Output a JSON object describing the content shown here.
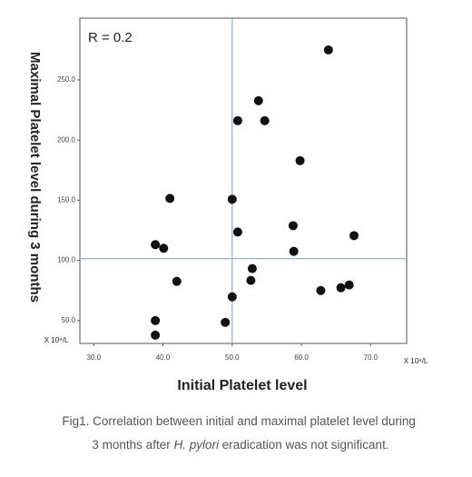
{
  "chart_data": {
    "type": "scatter",
    "annotation": "R = 0.2",
    "x_label": "Initial Platelet level",
    "y_label": "Maximal Platelet level during 3 months",
    "x_unit": "X 10⁹/L",
    "y_unit": "X 10⁹/L",
    "x": [
      63.9,
      53.8,
      50.8,
      54.7,
      59.8,
      41.0,
      50.0,
      58.8,
      50.8,
      67.6,
      38.9,
      40.1,
      58.9,
      52.9,
      52.7,
      42.0,
      62.8,
      65.7,
      66.9,
      50.0,
      38.9,
      49.0,
      38.9
    ],
    "values": [
      274.9,
      232.7,
      216.1,
      216.1,
      182.9,
      151.5,
      150.8,
      128.9,
      123.6,
      120.6,
      113.1,
      110.1,
      107.5,
      93.2,
      83.4,
      82.6,
      75.0,
      77.3,
      79.6,
      69.7,
      50.0,
      48.5,
      37.9
    ],
    "color": "#111111",
    "reference_x": 50,
    "reference_y": 101.5,
    "reference_color": "#9ab0c4",
    "xlim": [
      28,
      75.2
    ],
    "ylim": [
      31,
      301.3
    ],
    "xticks": [
      {
        "value": 30,
        "label": "30.0"
      },
      {
        "value": 40,
        "label": "40.0"
      },
      {
        "value": 50,
        "label": "50.0"
      },
      {
        "value": 60,
        "label": "60.0"
      },
      {
        "value": 70,
        "label": "70.0"
      }
    ],
    "yticks": [
      {
        "value": 50,
        "label": "50.0"
      },
      {
        "value": 100,
        "label": "100.0"
      },
      {
        "value": 150,
        "label": "150.0"
      },
      {
        "value": 200,
        "label": "200.0"
      },
      {
        "value": 250,
        "label": "250.0"
      }
    ]
  },
  "caption": [
    "Fig1. Correlation between initial and maximal platelet level during",
    "3 months after ",
    "H. pylori",
    " eradication was not significant."
  ]
}
